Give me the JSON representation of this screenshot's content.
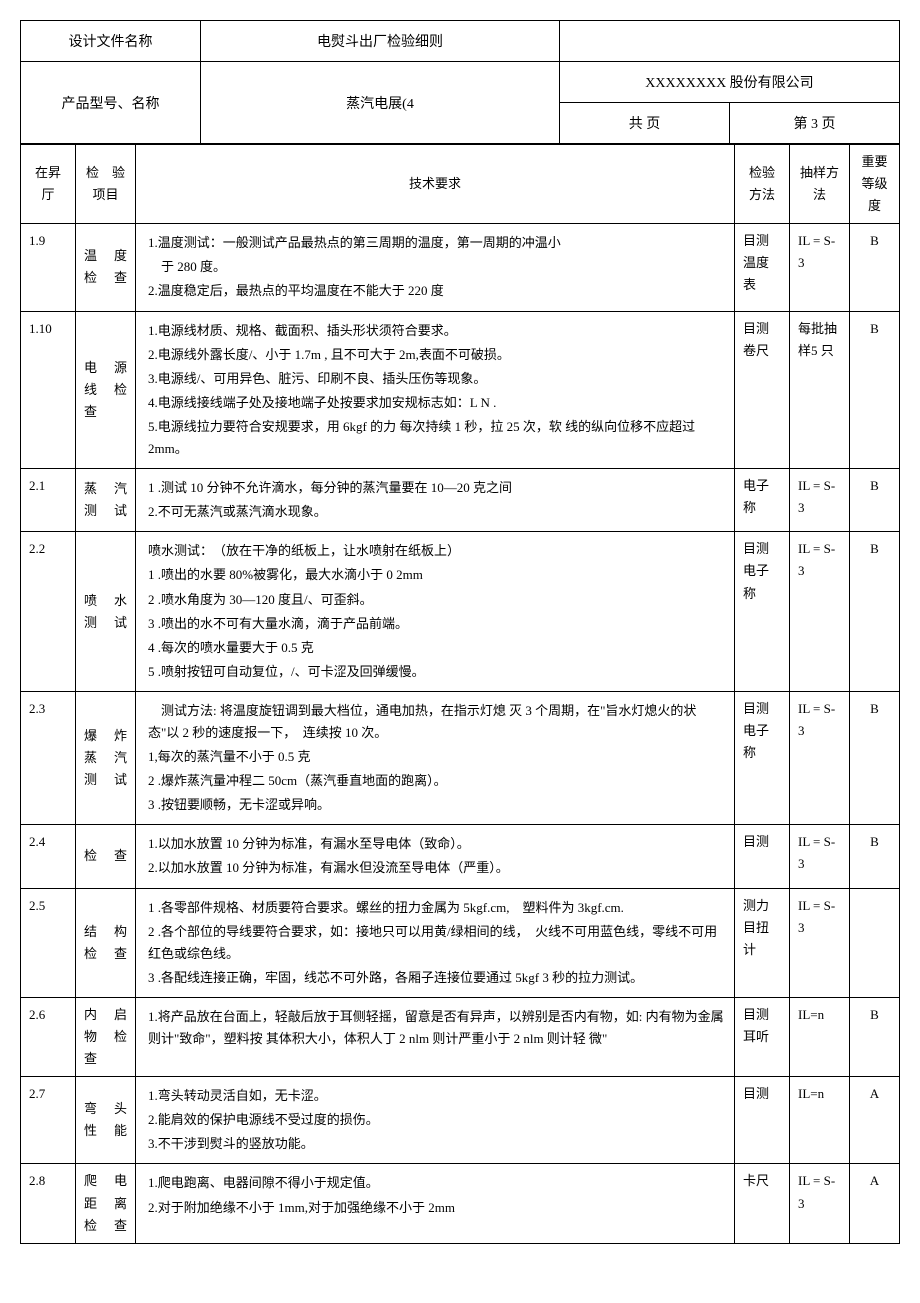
{
  "header": {
    "doc_name_label": "设计文件名称",
    "doc_name_value": "电熨斗出厂检验细则",
    "product_label": "产品型号、名称",
    "product_value": "蒸汽电展(4",
    "company": "XXXXXXXX 股份有限公司",
    "total_pages": "共 页",
    "page_num": "第 3 页"
  },
  "columns": {
    "seq": "在昇 厅",
    "item": "检　验项目",
    "req": "技术要求",
    "method": "检验方法",
    "sample": "抽样方法",
    "grade": "重要等级度"
  },
  "rows": [
    {
      "num": "1.9",
      "item": "温　度检查",
      "req": "1.温度测试：一般测试产品最热点的第三周期的温度，第一周期的冲温小\n　于 280 度。\n2.温度稳定后，最热点的平均温度在不能大于 220 度",
      "method": "目测温度表",
      "sample": "IL = S-3",
      "grade": "B"
    },
    {
      "num": "1.10",
      "item": "电　源线　检查",
      "req": "1.电源线材质、规格、截面积、插头形状须符合要求。\n2.电源线外露长度/、小于 1.7m , 且不可大于 2m,表面不可破损。\n3.电源线/、可用异色、脏污、印刷不良、插头压伤等现象。\n4.电源线接线端子处及接地端子处按要求加安规标志如：L N .\n5.电源线拉力要符合安规要求，用 6kgf 的力 每次持续 1 秒，拉 25 次，软 线的纵向位移不应超过 2mm。",
      "method": "目测卷尺",
      "sample": "每批抽样5 只",
      "grade": "B"
    },
    {
      "num": "2.1",
      "item": "蒸　汽测试",
      "req": "1 .测试 10 分钟不允许滴水，每分钟的蒸汽量要在 10—20 克之间\n2.不可无蒸汽或蒸汽滴水现象。",
      "method": "电子称",
      "sample": "IL = S-3",
      "grade": "B"
    },
    {
      "num": "2.2",
      "item": "喷　水测试",
      "req": "喷水测试：　（放在干净的纸板上，让水喷射在纸板上）\n1 .喷出的水要 80%被雾化，最大水滴小于 0 2mm\n2 .喷水角度为 30—120 度且/、可歪斜。\n3 .喷出的水不可有大量水滴，滴于产品前端。\n4 .每次的喷水量要大于 0.5 克\n5 .喷射按钮可自动复位，/、可卡涩及回弹缓慢。",
      "method": "目测电子称",
      "sample": "IL = S-3",
      "grade": "B"
    },
    {
      "num": "2.3",
      "item": "爆　炸蒸　汽测试",
      "req": "　测试方法: 将温度旋钮调到最大档位，通电加热，在指示灯熄 灭 3 个周期，在\"旨水灯熄火的状态\"以 2 秒的速度报一下，　连续按 10 次。\n1,每次的蒸汽量不小于 0.5 克\n2 .爆炸蒸汽量冲程二 50cm（蒸汽垂直地面的跑离）。\n3 .按钮要顺畅，无卡涩或异响。",
      "method": "目测电子称",
      "sample": "IL = S-3",
      "grade": "B"
    },
    {
      "num": "2.4",
      "item": "检查",
      "req": "1.以加水放置 10 分钟为标准，有漏水至导电体（致命）。\n2.以加水放置 10 分钟为标准，有漏水但没流至导电体（严重）。",
      "method": "目测",
      "sample": "IL = S-3",
      "grade": "B"
    },
    {
      "num": "2.5",
      "item": "结　构检查",
      "req": "1 .各零部件规格、材质要符合要求。螺丝的扭力金属为 5kgf.cm,　塑料件为 3kgf.cm.\n2 .各个部位的导线要符合要求，如：接地只可以用黄/绿相间的线，　火线不可用蓝色线，零线不可用红色或综色线。\n3 .各配线连接正确，牢固，线芯不可外路，各厢子连接位要通过 5kgf 3 秒的拉力测试。",
      "method": "测力目扭计",
      "sample": "IL = S-3",
      "grade": ""
    },
    {
      "num": "2.6",
      "item": "内　启物　检查",
      "req": "1.将产品放在台面上，轻敲后放于耳侧轻摇，留意是否有异声，以辨别是否内有物，如: 内有物为金属则计\"致命\"，塑料按 其体积大小，体积人丁 2 nlm 则计严重小于 2 nlm 则计轻 微\"",
      "method": "目测\n耳听",
      "sample": "IL=n",
      "grade": "B"
    },
    {
      "num": "2.7",
      "item": "弯　头性能",
      "req": "1.弯头转动灵活自如，无卡涩。\n2.能肩效的保护电源线不受过度的损伤。\n3.不干涉到熨斗的竖放功能。",
      "method": "目测",
      "sample": "IL=n",
      "grade": "A"
    },
    {
      "num": "2.8",
      "item": "爬　电距　离检查",
      "req": "1.爬电跑离、电器间隙不得小于规定值。\n2.对于附加绝缘不小于 1mm,对于加强绝缘不小于 2mm",
      "method": "卡尺",
      "sample": "IL = S-3",
      "grade": "A"
    }
  ]
}
